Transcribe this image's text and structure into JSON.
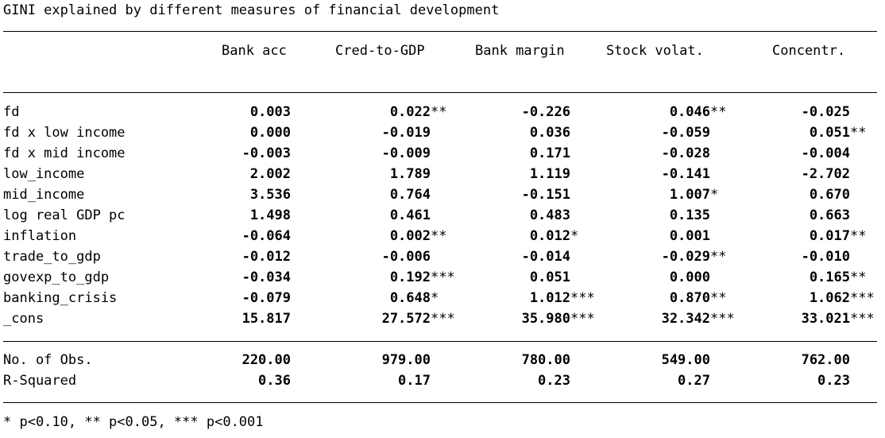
{
  "title": "GINI explained by different measures of financial development",
  "columns": [
    "Bank acc",
    "Cred-to-GDP",
    "Bank margin",
    "Stock volat.",
    "Concentr."
  ],
  "rows": [
    {
      "label": "fd",
      "cells": [
        {
          "v": "0.003",
          "s": ""
        },
        {
          "v": "0.022",
          "s": "**"
        },
        {
          "v": "-0.226",
          "s": ""
        },
        {
          "v": "0.046",
          "s": "**"
        },
        {
          "v": "-0.025",
          "s": ""
        }
      ]
    },
    {
      "label": "fd x low income",
      "cells": [
        {
          "v": "0.000",
          "s": ""
        },
        {
          "v": "-0.019",
          "s": ""
        },
        {
          "v": "0.036",
          "s": ""
        },
        {
          "v": "-0.059",
          "s": ""
        },
        {
          "v": "0.051",
          "s": "**"
        }
      ]
    },
    {
      "label": "fd x mid income",
      "cells": [
        {
          "v": "-0.003",
          "s": ""
        },
        {
          "v": "-0.009",
          "s": ""
        },
        {
          "v": "0.171",
          "s": ""
        },
        {
          "v": "-0.028",
          "s": ""
        },
        {
          "v": "-0.004",
          "s": ""
        }
      ]
    },
    {
      "label": "low_income",
      "cells": [
        {
          "v": "2.002",
          "s": ""
        },
        {
          "v": "1.789",
          "s": ""
        },
        {
          "v": "1.119",
          "s": ""
        },
        {
          "v": "-0.141",
          "s": ""
        },
        {
          "v": "-2.702",
          "s": ""
        }
      ]
    },
    {
      "label": "mid_income",
      "cells": [
        {
          "v": "3.536",
          "s": ""
        },
        {
          "v": "0.764",
          "s": ""
        },
        {
          "v": "-0.151",
          "s": ""
        },
        {
          "v": "1.007",
          "s": "*"
        },
        {
          "v": "0.670",
          "s": ""
        }
      ]
    },
    {
      "label": "log real GDP pc",
      "cells": [
        {
          "v": "1.498",
          "s": ""
        },
        {
          "v": "0.461",
          "s": ""
        },
        {
          "v": "0.483",
          "s": ""
        },
        {
          "v": "0.135",
          "s": ""
        },
        {
          "v": "0.663",
          "s": ""
        }
      ]
    },
    {
      "label": "inflation",
      "cells": [
        {
          "v": "-0.064",
          "s": ""
        },
        {
          "v": "0.002",
          "s": "**"
        },
        {
          "v": "0.012",
          "s": "*"
        },
        {
          "v": "0.001",
          "s": ""
        },
        {
          "v": "0.017",
          "s": "**"
        }
      ]
    },
    {
      "label": "trade_to_gdp",
      "cells": [
        {
          "v": "-0.012",
          "s": ""
        },
        {
          "v": "-0.006",
          "s": ""
        },
        {
          "v": "-0.014",
          "s": ""
        },
        {
          "v": "-0.029",
          "s": "**"
        },
        {
          "v": "-0.010",
          "s": ""
        }
      ]
    },
    {
      "label": "govexp_to_gdp",
      "cells": [
        {
          "v": "-0.034",
          "s": ""
        },
        {
          "v": "0.192",
          "s": "***"
        },
        {
          "v": "0.051",
          "s": ""
        },
        {
          "v": "0.000",
          "s": ""
        },
        {
          "v": "0.165",
          "s": "**"
        }
      ]
    },
    {
      "label": "banking_crisis",
      "cells": [
        {
          "v": "-0.079",
          "s": ""
        },
        {
          "v": "0.648",
          "s": "*"
        },
        {
          "v": "1.012",
          "s": "***"
        },
        {
          "v": "0.870",
          "s": "**"
        },
        {
          "v": "1.062",
          "s": "***"
        }
      ]
    },
    {
      "label": "_cons",
      "cells": [
        {
          "v": "15.817",
          "s": ""
        },
        {
          "v": "27.572",
          "s": "***"
        },
        {
          "v": "35.980",
          "s": "***"
        },
        {
          "v": "32.342",
          "s": "***"
        },
        {
          "v": "33.021",
          "s": "***"
        }
      ]
    }
  ],
  "stats": [
    {
      "label": "No. of Obs.",
      "cells": [
        {
          "v": "220.00",
          "s": ""
        },
        {
          "v": "979.00",
          "s": ""
        },
        {
          "v": "780.00",
          "s": ""
        },
        {
          "v": "549.00",
          "s": ""
        },
        {
          "v": "762.00",
          "s": ""
        }
      ]
    },
    {
      "label": "R-Squared",
      "cells": [
        {
          "v": "0.36",
          "s": ""
        },
        {
          "v": "0.17",
          "s": ""
        },
        {
          "v": "0.23",
          "s": ""
        },
        {
          "v": "0.27",
          "s": ""
        },
        {
          "v": "0.23",
          "s": ""
        }
      ]
    }
  ],
  "note": "* p<0.10, ** p<0.05, *** p<0.001"
}
